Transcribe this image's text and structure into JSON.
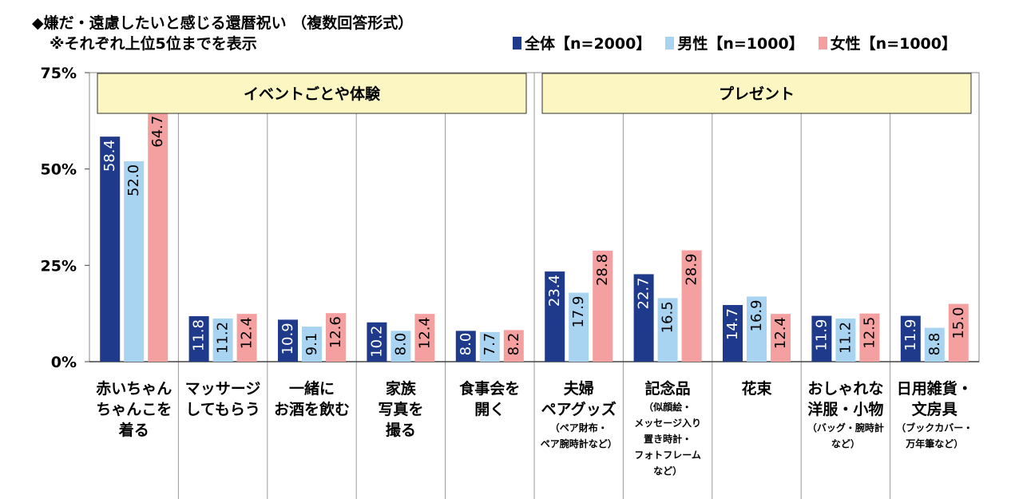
{
  "title": "◆嫌だ・遠慮したいと感じる還暦祝い （複数回答形式）",
  "subtitle": "※それぞれ上位5位までを表示",
  "colors": {
    "all": "#1F3A8A",
    "male": "#A8D4F2",
    "female": "#F4A0A0",
    "group_bg": "#FCF6C2"
  },
  "chart_data": {
    "type": "bar",
    "title": "◆嫌だ・遠慮したいと感じる還暦祝い （複数回答形式）",
    "subtitle": "※それぞれ上位5位までを表示",
    "ylim": [
      0,
      75
    ],
    "yticks": [
      0,
      25,
      50,
      75
    ],
    "ytick_labels": [
      "0%",
      "25%",
      "50%",
      "75%"
    ],
    "legend_position": "top-right",
    "groups": [
      {
        "label": "イベントごとや体験",
        "start": 0,
        "end": 4
      },
      {
        "label": "プレゼント",
        "start": 5,
        "end": 9
      }
    ],
    "categories": [
      {
        "lines": [
          "赤いちゃん",
          "ちゃんこを",
          "着る"
        ],
        "note": []
      },
      {
        "lines": [
          "マッサージ",
          "してもらう"
        ],
        "note": []
      },
      {
        "lines": [
          "一緒に",
          "お酒を飲む"
        ],
        "note": []
      },
      {
        "lines": [
          "家族",
          "写真を",
          "撮る"
        ],
        "note": []
      },
      {
        "lines": [
          "食事会を",
          "開く"
        ],
        "note": []
      },
      {
        "lines": [
          "夫婦",
          "ペアグッズ"
        ],
        "note": [
          "（ペア財布・",
          "ペア腕時計など）"
        ]
      },
      {
        "lines": [
          "記念品"
        ],
        "note": [
          "（似顔絵・",
          "メッセージ入り",
          "置き時計・",
          "フォトフレーム",
          "など）"
        ]
      },
      {
        "lines": [
          "花束"
        ],
        "note": []
      },
      {
        "lines": [
          "おしゃれな",
          "洋服・小物"
        ],
        "note": [
          "（バッグ・腕時計",
          "など）"
        ]
      },
      {
        "lines": [
          "日用雑貨・",
          "文房具"
        ],
        "note": [
          "（ブックカバー・",
          "万年筆など）"
        ]
      }
    ],
    "series": [
      {
        "name": "全体【n=2000】",
        "color": "#1F3A8A",
        "values": [
          58.4,
          11.8,
          10.9,
          10.2,
          8.0,
          23.4,
          22.7,
          14.7,
          11.9,
          11.9
        ]
      },
      {
        "name": "男性【n=1000】",
        "color": "#A8D4F2",
        "values": [
          52.0,
          11.2,
          9.1,
          8.0,
          7.7,
          17.9,
          16.5,
          16.9,
          11.2,
          8.8
        ]
      },
      {
        "name": "女性【n=1000】",
        "color": "#F4A0A0",
        "values": [
          64.7,
          12.4,
          12.6,
          12.4,
          8.2,
          28.8,
          28.9,
          12.4,
          12.5,
          15.0
        ]
      }
    ]
  }
}
